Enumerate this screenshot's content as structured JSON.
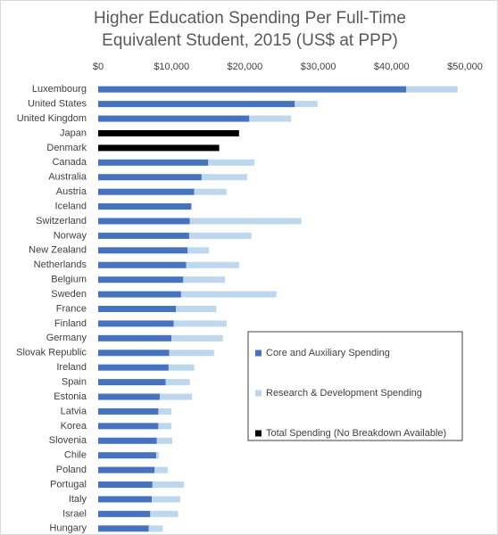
{
  "chart_data": {
    "type": "stacked-barh",
    "title": "Higher Education Spending Per Full-Time Equivalent Student, 2015 (US$ at PPP)",
    "categories": [
      "Luxembourg",
      "United States",
      "United Kingdom",
      "Japan",
      "Denmark",
      "Canada",
      "Australia",
      "Austria",
      "Iceland",
      "Switzerland",
      "Norway",
      "New Zealand",
      "Netherlands",
      "Belgium",
      "Sweden",
      "France",
      "Finland",
      "Germany",
      "Slovak Republic",
      "Ireland",
      "Spain",
      "Estonia",
      "Latvia",
      "Korea",
      "Slovenia",
      "Chile",
      "Poland",
      "Portugal",
      "Italy",
      "Israel",
      "Hungary"
    ],
    "series": [
      {
        "name": "Core and Auxiliary Spending",
        "color": "#4472c4",
        "values": [
          42000,
          26800,
          20600,
          null,
          null,
          15000,
          14100,
          13100,
          12700,
          12500,
          12400,
          12200,
          12000,
          11600,
          11300,
          10600,
          10300,
          10000,
          9700,
          9600,
          9200,
          8400,
          8200,
          8200,
          8000,
          7900,
          7700,
          7400,
          7300,
          7100,
          6900
        ]
      },
      {
        "name": "Research & Development Spending",
        "color": "#bdd7ee",
        "values": [
          7000,
          3100,
          5700,
          null,
          null,
          6300,
          6200,
          4400,
          0,
          15200,
          8500,
          2900,
          7200,
          5700,
          13000,
          5500,
          7200,
          7000,
          6100,
          3500,
          3300,
          4400,
          1800,
          1800,
          2100,
          400,
          1800,
          4300,
          3900,
          3800,
          1900
        ]
      },
      {
        "name": "Total Spending (No Breakdown Available)",
        "color": "#000000",
        "values": [
          null,
          null,
          null,
          19200,
          16500,
          null,
          null,
          null,
          null,
          null,
          null,
          null,
          null,
          null,
          null,
          null,
          null,
          null,
          null,
          null,
          null,
          null,
          null,
          null,
          null,
          null,
          null,
          null,
          null,
          null,
          null
        ]
      }
    ],
    "xlim": [
      0,
      50000
    ],
    "xticks": [
      {
        "value": 0,
        "label": "$0"
      },
      {
        "value": 10000,
        "label": "$10,000"
      },
      {
        "value": 20000,
        "label": "$20,000"
      },
      {
        "value": 30000,
        "label": "$30,000"
      },
      {
        "value": 40000,
        "label": "$40,000"
      },
      {
        "value": 50000,
        "label": "$50,000"
      }
    ]
  }
}
